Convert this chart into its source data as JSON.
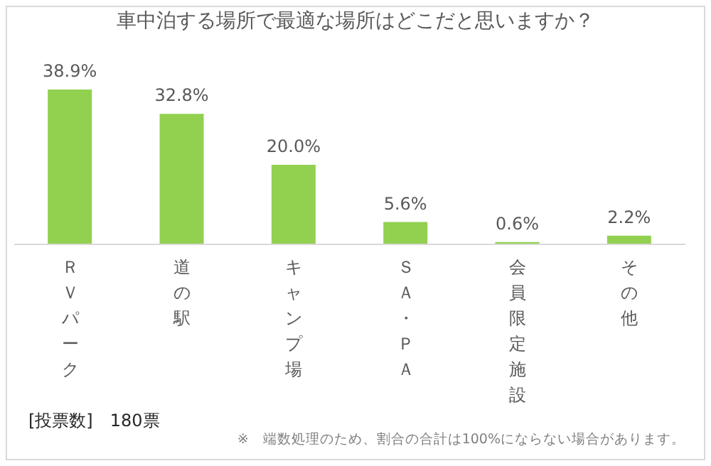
{
  "chart_data": {
    "type": "bar",
    "title": "車中泊する場所で最適な場所はどこだと思いますか？",
    "categories": [
      "ＲＶパーク",
      "道の駅",
      "キャンプ場",
      "ＳＡ・ＰＡ",
      "会員限定施設",
      "その他"
    ],
    "values": [
      38.9,
      32.8,
      20.0,
      5.6,
      0.6,
      2.2
    ],
    "value_labels": [
      "38.9%",
      "32.8%",
      "20.0%",
      "5.6%",
      "0.6%",
      "2.2%"
    ],
    "color": "#92d050",
    "grid": false,
    "legend": false,
    "annotations": [
      "[投票数]　180票",
      "※　端数処理のため、割合の合計は100%にならない場合があります。"
    ]
  }
}
